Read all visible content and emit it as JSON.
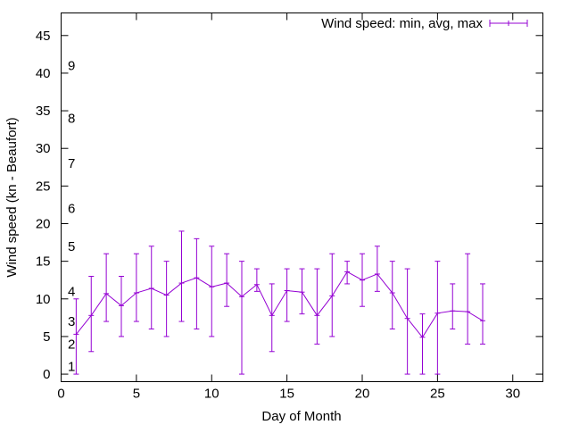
{
  "chart_data": {
    "type": "line",
    "title": "",
    "xlabel": "Day of Month",
    "ylabel": "Wind speed (kn - Beaufort)",
    "xlim": [
      0,
      32
    ],
    "ylim": [
      -1,
      48
    ],
    "x_ticks": [
      0,
      5,
      10,
      15,
      20,
      25,
      30
    ],
    "y_ticks": [
      0,
      5,
      10,
      15,
      20,
      25,
      30,
      35,
      40,
      45
    ],
    "beaufort_labels": [
      {
        "label": "1",
        "y": 1
      },
      {
        "label": "2",
        "y": 4
      },
      {
        "label": "3",
        "y": 7
      },
      {
        "label": "4",
        "y": 11
      },
      {
        "label": "5",
        "y": 17
      },
      {
        "label": "6",
        "y": 22
      },
      {
        "label": "7",
        "y": 28
      },
      {
        "label": "8",
        "y": 34
      },
      {
        "label": "9",
        "y": 41
      }
    ],
    "grid": false,
    "legend_position": "top-right",
    "color": "#9400d3",
    "series": [
      {
        "name": "Wind speed: min, avg, max",
        "points": [
          {
            "x": 1,
            "min": 0,
            "avg": 5.3,
            "max": 10
          },
          {
            "x": 2,
            "min": 3,
            "avg": 7.8,
            "max": 13
          },
          {
            "x": 3,
            "min": 7,
            "avg": 10.7,
            "max": 16
          },
          {
            "x": 4,
            "min": 5,
            "avg": 9.1,
            "max": 13
          },
          {
            "x": 5,
            "min": 7,
            "avg": 10.8,
            "max": 16
          },
          {
            "x": 6,
            "min": 6,
            "avg": 11.4,
            "max": 17
          },
          {
            "x": 7,
            "min": 5,
            "avg": 10.5,
            "max": 15
          },
          {
            "x": 8,
            "min": 7,
            "avg": 12.1,
            "max": 19
          },
          {
            "x": 9,
            "min": 6,
            "avg": 12.8,
            "max": 18
          },
          {
            "x": 10,
            "min": 5,
            "avg": 11.6,
            "max": 17
          },
          {
            "x": 11,
            "min": 9,
            "avg": 12.1,
            "max": 16
          },
          {
            "x": 12,
            "min": 0,
            "avg": 10.3,
            "max": 15
          },
          {
            "x": 13,
            "min": 11,
            "avg": 11.9,
            "max": 14
          },
          {
            "x": 14,
            "min": 3,
            "avg": 7.8,
            "max": 12
          },
          {
            "x": 15,
            "min": 7,
            "avg": 11.1,
            "max": 14
          },
          {
            "x": 16,
            "min": 8,
            "avg": 10.9,
            "max": 14
          },
          {
            "x": 17,
            "min": 4,
            "avg": 7.8,
            "max": 14
          },
          {
            "x": 18,
            "min": 5,
            "avg": 10.4,
            "max": 16
          },
          {
            "x": 19,
            "min": 12,
            "avg": 13.6,
            "max": 15
          },
          {
            "x": 20,
            "min": 9,
            "avg": 12.5,
            "max": 16
          },
          {
            "x": 21,
            "min": 11,
            "avg": 13.3,
            "max": 17
          },
          {
            "x": 22,
            "min": 6,
            "avg": 10.8,
            "max": 15
          },
          {
            "x": 23,
            "min": 0,
            "avg": 7.4,
            "max": 14
          },
          {
            "x": 24,
            "min": 0,
            "avg": 4.9,
            "max": 8
          },
          {
            "x": 25,
            "min": 0,
            "avg": 8.1,
            "max": 15
          },
          {
            "x": 26,
            "min": 6,
            "avg": 8.4,
            "max": 12
          },
          {
            "x": 27,
            "min": 4,
            "avg": 8.3,
            "max": 16
          },
          {
            "x": 28,
            "min": 4,
            "avg": 7.1,
            "max": 12
          }
        ]
      }
    ]
  }
}
